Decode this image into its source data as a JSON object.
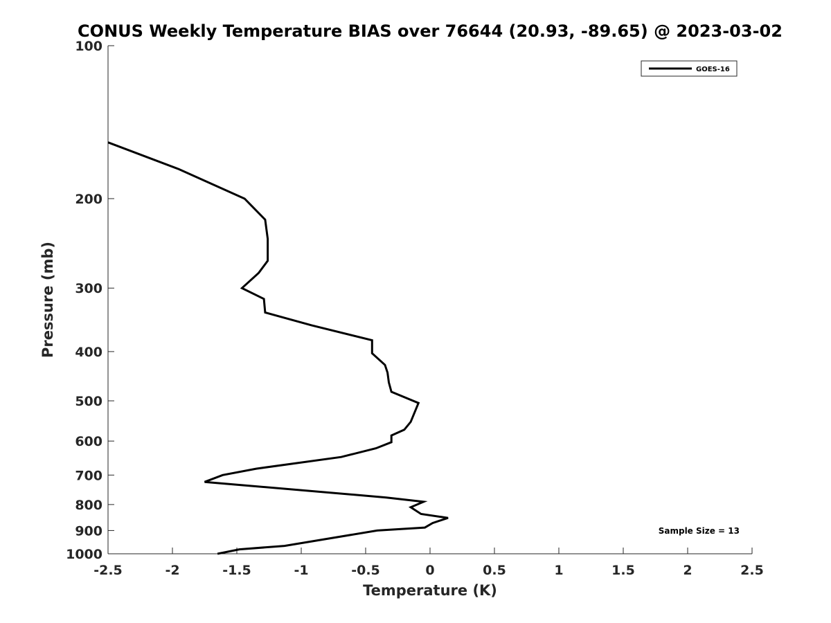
{
  "chart_data": {
    "type": "line",
    "title": "CONUS Weekly Temperature BIAS over 76644 (20.93, -89.65) @ 2023-03-02",
    "xlabel": "Temperature (K)",
    "ylabel": "Pressure (mb)",
    "xlim": [
      -2.5,
      2.5
    ],
    "ylim": [
      1000,
      100
    ],
    "yscale": "log",
    "y_reversed": true,
    "xticks": [
      "-2.5",
      "-2",
      "-1.5",
      "-1",
      "-0.5",
      "0",
      "0.5",
      "1",
      "1.5",
      "2",
      "2.5"
    ],
    "yticks": [
      "100",
      "200",
      "300",
      "400",
      "500",
      "600",
      "700",
      "800",
      "900",
      "1000"
    ],
    "grid": false,
    "legend_position": "top-right",
    "series": [
      {
        "name": "GOES-16",
        "color": "#000000",
        "points": [
          {
            "x": -1.65,
            "y": 1000
          },
          {
            "x": -1.48,
            "y": 980
          },
          {
            "x": -1.13,
            "y": 965
          },
          {
            "x": -0.41,
            "y": 900
          },
          {
            "x": -0.04,
            "y": 888
          },
          {
            "x": 0.02,
            "y": 870
          },
          {
            "x": 0.14,
            "y": 850
          },
          {
            "x": -0.07,
            "y": 835
          },
          {
            "x": -0.15,
            "y": 810
          },
          {
            "x": -0.05,
            "y": 790
          },
          {
            "x": -0.34,
            "y": 775
          },
          {
            "x": -1.75,
            "y": 722
          },
          {
            "x": -1.61,
            "y": 700
          },
          {
            "x": -1.35,
            "y": 680
          },
          {
            "x": -0.69,
            "y": 645
          },
          {
            "x": -0.42,
            "y": 620
          },
          {
            "x": -0.3,
            "y": 603
          },
          {
            "x": -0.3,
            "y": 585
          },
          {
            "x": -0.2,
            "y": 570
          },
          {
            "x": -0.15,
            "y": 550
          },
          {
            "x": -0.09,
            "y": 505
          },
          {
            "x": -0.3,
            "y": 480
          },
          {
            "x": -0.32,
            "y": 460
          },
          {
            "x": -0.33,
            "y": 440
          },
          {
            "x": -0.35,
            "y": 425
          },
          {
            "x": -0.45,
            "y": 403
          },
          {
            "x": -0.45,
            "y": 380
          },
          {
            "x": -0.92,
            "y": 355
          },
          {
            "x": -1.28,
            "y": 335
          },
          {
            "x": -1.29,
            "y": 315
          },
          {
            "x": -1.46,
            "y": 300
          },
          {
            "x": -1.33,
            "y": 280
          },
          {
            "x": -1.26,
            "y": 265
          },
          {
            "x": -1.26,
            "y": 240
          },
          {
            "x": -1.28,
            "y": 220
          },
          {
            "x": -1.44,
            "y": 200
          },
          {
            "x": -1.95,
            "y": 175
          },
          {
            "x": -2.5,
            "y": 155
          }
        ]
      }
    ],
    "annotations": [
      "Sample Size = 13"
    ]
  }
}
